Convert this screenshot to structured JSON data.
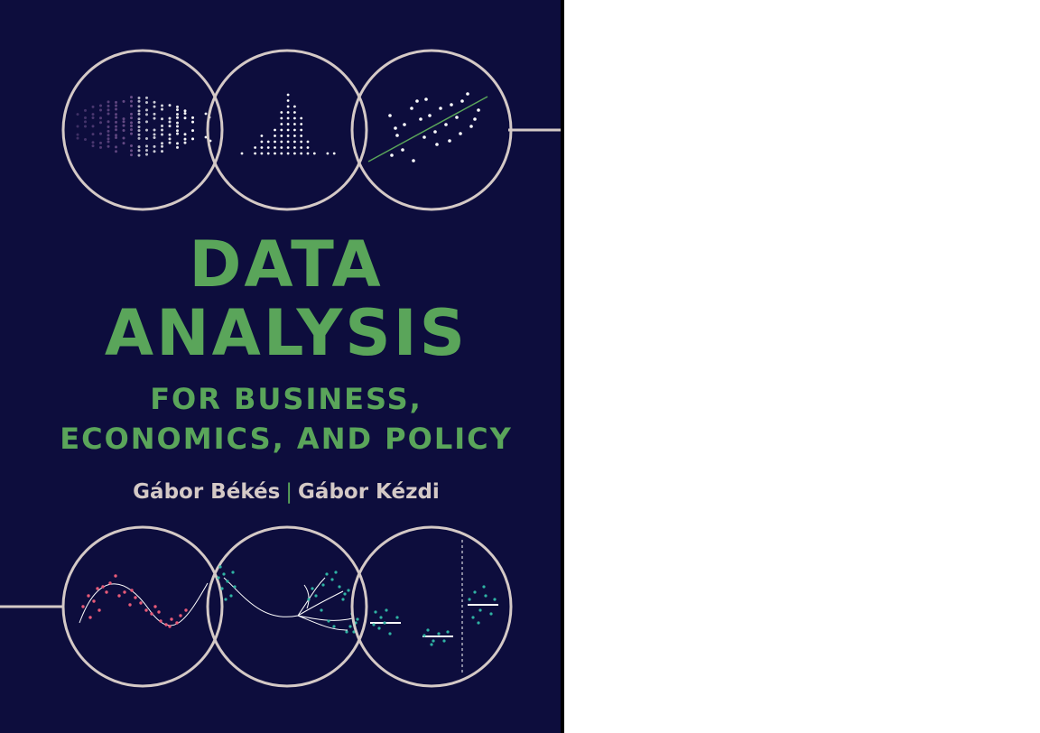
{
  "cover": {
    "title_line1": "DATA",
    "title_line2": "ANALYSIS",
    "subtitle_line1": "FOR BUSINESS,",
    "subtitle_line2": "ECONOMICS, AND POLICY",
    "author1": "Gábor Békés",
    "separator": "|",
    "author2": "Gábor Kézdi"
  },
  "colors": {
    "background": "#0d0d3d",
    "title_green": "#5aa55a",
    "circle_outline": "#d4c9c6",
    "dot_white": "#ffffff",
    "dot_teal": "#2fb3a3",
    "dot_pink": "#e85a78",
    "dot_purple": "#9a6fb0"
  },
  "icons": [
    "scatter-cloud-icon",
    "histogram-icon",
    "regression-scatter-icon",
    "curve-fit-icon",
    "tree-branches-icon",
    "group-means-icon"
  ]
}
